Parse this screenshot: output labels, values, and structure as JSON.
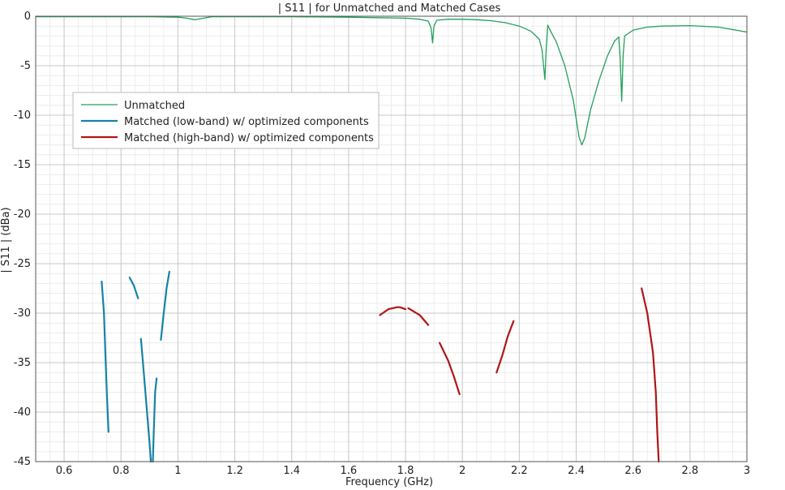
{
  "chart_data": {
    "type": "line",
    "title": "| S11 | for Unmatched and Matched Cases",
    "xlabel": "Frequency (GHz)",
    "ylabel": "| S11 | (dBa)",
    "xlim": [
      0.5,
      3.0
    ],
    "ylim": [
      -45,
      0
    ],
    "x_ticks": [
      0.6,
      0.8,
      1,
      1.2,
      1.4,
      1.6,
      1.8,
      2,
      2.2,
      2.4,
      2.6,
      2.8,
      3
    ],
    "y_ticks": [
      0,
      -5,
      -10,
      -15,
      -20,
      -25,
      -30,
      -35,
      -40,
      -45
    ],
    "x_tick_labels": [
      "0.6",
      "0.8",
      "1",
      "1.2",
      "1.4",
      "1.6",
      "1.8",
      "2",
      "2.2",
      "2.4",
      "2.6",
      "2.8",
      "3"
    ],
    "y_tick_labels": [
      "0",
      "-5",
      "-10",
      "-15",
      "-20",
      "-25",
      "-30",
      "-35",
      "-40",
      "-45"
    ],
    "grid": true,
    "legend_position": "upper-left",
    "series": [
      {
        "name": "Unmatched",
        "color": "#22a05a",
        "segments": [
          [
            [
              0.5,
              -0.05
            ],
            [
              0.7,
              -0.05
            ],
            [
              0.9,
              -0.05
            ],
            [
              1.0,
              -0.1
            ],
            [
              1.03,
              -0.2
            ],
            [
              1.06,
              -0.35
            ],
            [
              1.09,
              -0.2
            ],
            [
              1.12,
              -0.05
            ],
            [
              1.2,
              -0.05
            ],
            [
              1.4,
              -0.05
            ],
            [
              1.6,
              -0.1
            ],
            [
              1.7,
              -0.15
            ],
            [
              1.8,
              -0.2
            ],
            [
              1.85,
              -0.3
            ],
            [
              1.88,
              -0.5
            ],
            [
              1.89,
              -1.2
            ],
            [
              1.895,
              -2.7
            ],
            [
              1.9,
              -1.0
            ],
            [
              1.91,
              -0.4
            ],
            [
              1.95,
              -0.3
            ],
            [
              2.0,
              -0.3
            ],
            [
              2.05,
              -0.35
            ],
            [
              2.1,
              -0.45
            ],
            [
              2.15,
              -0.65
            ],
            [
              2.2,
              -1.0
            ],
            [
              2.24,
              -1.5
            ],
            [
              2.27,
              -2.3
            ],
            [
              2.28,
              -3.4
            ],
            [
              2.29,
              -6.4
            ],
            [
              2.295,
              -3.0
            ],
            [
              2.3,
              -0.9
            ],
            [
              2.31,
              -1.5
            ],
            [
              2.33,
              -2.6
            ],
            [
              2.36,
              -5.0
            ],
            [
              2.39,
              -8.5
            ],
            [
              2.41,
              -12.2
            ],
            [
              2.42,
              -13.0
            ],
            [
              2.43,
              -12.3
            ],
            [
              2.45,
              -9.5
            ],
            [
              2.48,
              -6.5
            ],
            [
              2.51,
              -4.0
            ],
            [
              2.535,
              -2.5
            ],
            [
              2.55,
              -2.1
            ],
            [
              2.555,
              -4.5
            ],
            [
              2.56,
              -8.6
            ],
            [
              2.565,
              -4.0
            ],
            [
              2.57,
              -2.0
            ],
            [
              2.6,
              -1.4
            ],
            [
              2.65,
              -1.1
            ],
            [
              2.7,
              -1.0
            ],
            [
              2.8,
              -0.95
            ],
            [
              2.9,
              -1.1
            ],
            [
              3.0,
              -1.6
            ]
          ]
        ]
      },
      {
        "name": "Matched (low-band) w/ optimized components",
        "color": "#1583a6",
        "segments": [
          [
            [
              0.732,
              -26.8
            ],
            [
              0.74,
              -30
            ],
            [
              0.745,
              -34
            ],
            [
              0.75,
              -38
            ],
            [
              0.756,
              -42
            ]
          ],
          [
            [
              0.83,
              -26.4
            ],
            [
              0.845,
              -27.2
            ],
            [
              0.86,
              -28.5
            ]
          ],
          [
            [
              0.87,
              -32.6
            ],
            [
              0.88,
              -36
            ],
            [
              0.89,
              -39.5
            ],
            [
              0.9,
              -43
            ],
            [
              0.905,
              -45
            ]
          ],
          [
            [
              0.912,
              -45
            ],
            [
              0.915,
              -42
            ],
            [
              0.92,
              -38
            ],
            [
              0.925,
              -36.6
            ]
          ],
          [
            [
              0.94,
              -32.7
            ],
            [
              0.95,
              -30
            ],
            [
              0.96,
              -27.5
            ],
            [
              0.97,
              -25.8
            ]
          ]
        ]
      },
      {
        "name": "Matched (high-band) w/ optimized components",
        "color": "#b01515",
        "segments": [
          [
            [
              1.71,
              -30.2
            ],
            [
              1.74,
              -29.6
            ],
            [
              1.77,
              -29.4
            ],
            [
              1.78,
              -29.4
            ],
            [
              1.8,
              -29.6
            ]
          ],
          [
            [
              1.81,
              -29.5
            ],
            [
              1.85,
              -30.2
            ],
            [
              1.88,
              -31.2
            ]
          ],
          [
            [
              1.92,
              -33
            ],
            [
              1.95,
              -34.8
            ],
            [
              1.97,
              -36.4
            ],
            [
              1.99,
              -38.2
            ]
          ],
          [
            [
              2.12,
              -36
            ],
            [
              2.14,
              -34.3
            ],
            [
              2.16,
              -32.3
            ],
            [
              2.18,
              -30.8
            ]
          ],
          [
            [
              2.63,
              -27.5
            ],
            [
              2.65,
              -30
            ],
            [
              2.67,
              -34
            ],
            [
              2.68,
              -38
            ],
            [
              2.685,
              -42
            ],
            [
              2.69,
              -45
            ]
          ]
        ]
      }
    ]
  }
}
